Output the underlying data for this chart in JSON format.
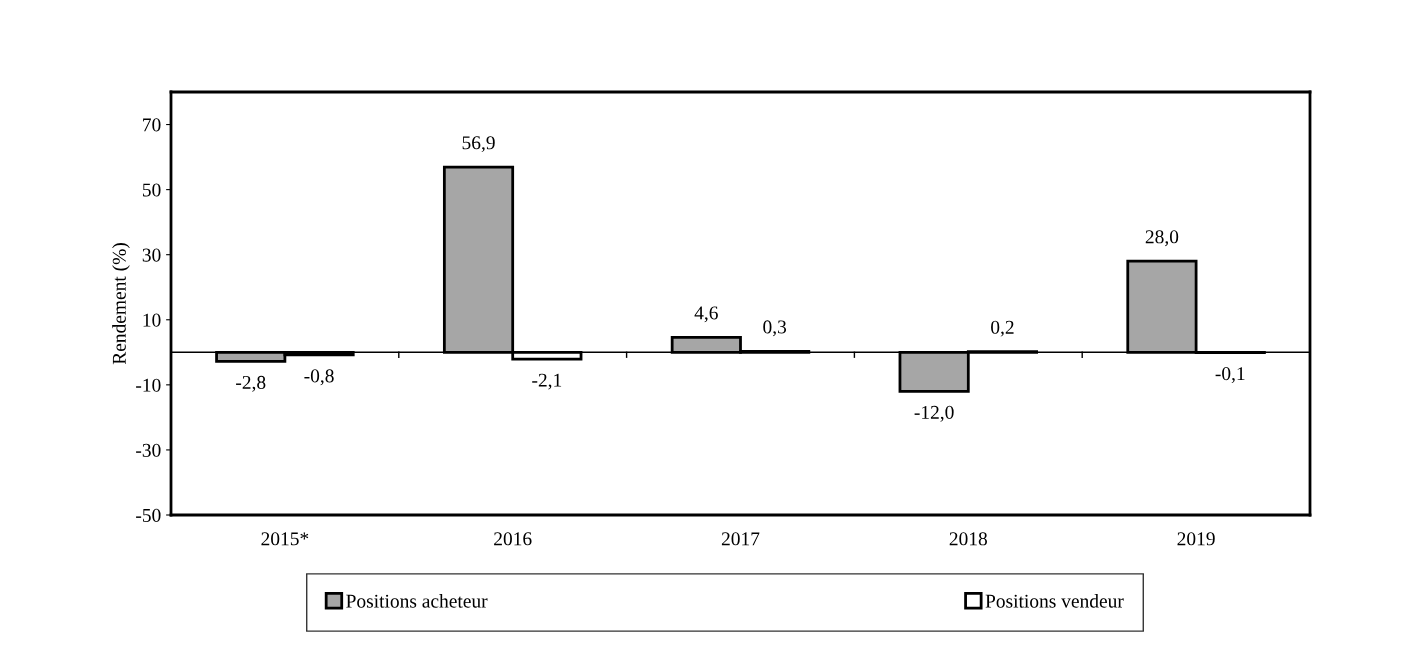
{
  "chart_data": {
    "type": "bar",
    "ylabel": "Rendement (%)",
    "categories": [
      "2015*",
      "2016",
      "2017",
      "2018",
      "2019"
    ],
    "series": [
      {
        "name": "Positions acheteur",
        "color": "#a6a6a6",
        "values": [
          -2.8,
          56.9,
          4.6,
          -12.0,
          28.0
        ],
        "value_labels": [
          "-2,8",
          "56,9",
          "4,6",
          "-12,0",
          "28,0"
        ]
      },
      {
        "name": "Positions vendeur",
        "color": "#ffffff",
        "values": [
          -0.8,
          -2.1,
          0.3,
          0.2,
          -0.1
        ],
        "value_labels": [
          "-0,8",
          "-2,1",
          "0,3",
          "0,2",
          "-0,1"
        ]
      }
    ],
    "ylim": [
      -50,
      80
    ],
    "yticks": [
      -50,
      -30,
      -10,
      10,
      30,
      50,
      70
    ],
    "grid": false,
    "legend": "bottom"
  }
}
